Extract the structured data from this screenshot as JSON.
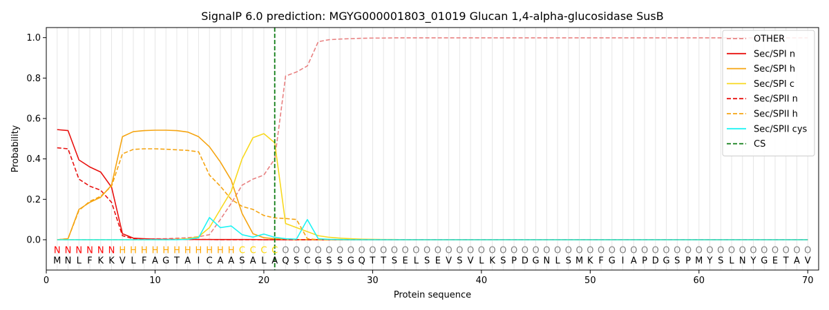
{
  "chart_data": {
    "type": "line",
    "title": "SignalP 6.0 prediction: MGYG000001803_01019 Glucan 1,4-alpha-glucosidase SusB",
    "xlabel": "Protein sequence",
    "ylabel": "Probability",
    "xlim": [
      0,
      71
    ],
    "ylim": [
      -0.15,
      1.05
    ],
    "xticks": [
      0,
      10,
      20,
      30,
      40,
      50,
      60,
      70
    ],
    "yticks": [
      0.0,
      0.2,
      0.4,
      0.6,
      0.8,
      1.0
    ],
    "ytick_labels": [
      "0.0",
      "0.2",
      "0.4",
      "0.6",
      "0.8",
      "1.0"
    ],
    "grid": "vertical lines at every residue",
    "legend_position": "top-right",
    "cleavage_site": 21,
    "sequence": [
      "M",
      "N",
      "L",
      "F",
      "K",
      "K",
      "V",
      "L",
      "F",
      "A",
      "G",
      "T",
      "A",
      "I",
      "C",
      "A",
      "A",
      "S",
      "A",
      "L",
      "A",
      "Q",
      "S",
      "C",
      "G",
      "S",
      "S",
      "G",
      "Q",
      "T",
      "T",
      "S",
      "E",
      "L",
      "S",
      "E",
      "V",
      "S",
      "V",
      "L",
      "K",
      "S",
      "P",
      "D",
      "G",
      "N",
      "L",
      "S",
      "M",
      "K",
      "F",
      "G",
      "I",
      "A",
      "P",
      "D",
      "G",
      "S",
      "P",
      "M",
      "Y",
      "S",
      "L",
      "N",
      "Y",
      "G",
      "E",
      "T",
      "A",
      "V"
    ],
    "region_labels": [
      "N",
      "N",
      "N",
      "N",
      "N",
      "N",
      "H",
      "H",
      "H",
      "H",
      "H",
      "H",
      "H",
      "H",
      "H",
      "H",
      "H",
      "C",
      "C",
      "C",
      "C",
      "O",
      "O",
      "O",
      "O",
      "O",
      "O",
      "O",
      "O",
      "O",
      "O",
      "O",
      "O",
      "O",
      "O",
      "O",
      "O",
      "O",
      "O",
      "O",
      "O",
      "O",
      "O",
      "O",
      "O",
      "O",
      "O",
      "O",
      "O",
      "O",
      "O",
      "O",
      "O",
      "O",
      "O",
      "O",
      "O",
      "O",
      "O",
      "O",
      "O",
      "O",
      "O",
      "O",
      "O",
      "O",
      "O",
      "O",
      "O",
      "O"
    ],
    "region_colors": {
      "N": "#ff0000",
      "H": "#ffa500",
      "C": "#ffd700",
      "O": "#808080"
    },
    "series": [
      {
        "name": "OTHER",
        "color": "#e88080",
        "dash": "dashed",
        "values": [
          0.0,
          0.0,
          0.0,
          0.0,
          0.0,
          0.0,
          0.0,
          0.0,
          0.0,
          0.005,
          0.005,
          0.008,
          0.01,
          0.015,
          0.025,
          0.1,
          0.18,
          0.27,
          0.3,
          0.32,
          0.4,
          0.81,
          0.83,
          0.86,
          0.98,
          0.99,
          0.993,
          0.995,
          0.997,
          0.998,
          0.998,
          0.999,
          0.999,
          0.999,
          0.999,
          0.999,
          0.999,
          0.999,
          0.999,
          0.999,
          0.999,
          0.999,
          0.999,
          0.999,
          0.999,
          0.999,
          0.999,
          0.999,
          0.999,
          0.999,
          0.999,
          0.999,
          0.999,
          0.999,
          0.999,
          0.999,
          0.999,
          0.999,
          0.999,
          0.999,
          0.999,
          0.999,
          0.999,
          0.999,
          0.999,
          0.999,
          0.999,
          0.999,
          0.999,
          0.999
        ]
      },
      {
        "name": "Sec/SPI n",
        "color": "#e8100e",
        "dash": "solid",
        "values": [
          0.545,
          0.54,
          0.395,
          0.36,
          0.335,
          0.26,
          0.03,
          0.008,
          0.005,
          0.003,
          0.002,
          0.002,
          0.002,
          0.001,
          0.001,
          0.001,
          0.001,
          0.001,
          0.001,
          0.0,
          0.0,
          0.0,
          0.0,
          0.0,
          0.0,
          0.0,
          0.0,
          0.0,
          0.0,
          0.0,
          0.0,
          0.0,
          0.0,
          0.0,
          0.0,
          0.0,
          0.0,
          0.0,
          0.0,
          0.0,
          0.0,
          0.0,
          0.0,
          0.0,
          0.0,
          0.0,
          0.0,
          0.0,
          0.0,
          0.0,
          0.0,
          0.0,
          0.0,
          0.0,
          0.0,
          0.0,
          0.0,
          0.0,
          0.0,
          0.0,
          0.0,
          0.0,
          0.0,
          0.0,
          0.0,
          0.0,
          0.0,
          0.0,
          0.0,
          0.0
        ]
      },
      {
        "name": "Sec/SPI h",
        "color": "#f5a410",
        "dash": "solid",
        "values": [
          0.0,
          0.005,
          0.15,
          0.185,
          0.21,
          0.27,
          0.51,
          0.535,
          0.54,
          0.542,
          0.542,
          0.54,
          0.533,
          0.51,
          0.46,
          0.385,
          0.295,
          0.13,
          0.03,
          0.01,
          0.005,
          0.002,
          0.0,
          0.0,
          0.0,
          0.0,
          0.0,
          0.0,
          0.0,
          0.0,
          0.0,
          0.0,
          0.0,
          0.0,
          0.0,
          0.0,
          0.0,
          0.0,
          0.0,
          0.0,
          0.0,
          0.0,
          0.0,
          0.0,
          0.0,
          0.0,
          0.0,
          0.0,
          0.0,
          0.0,
          0.0,
          0.0,
          0.0,
          0.0,
          0.0,
          0.0,
          0.0,
          0.0,
          0.0,
          0.0,
          0.0,
          0.0,
          0.0,
          0.0,
          0.0,
          0.0,
          0.0,
          0.0,
          0.0,
          0.0
        ]
      },
      {
        "name": "Sec/SPI c",
        "color": "#f8d81e",
        "dash": "solid",
        "values": [
          0.0,
          0.0,
          0.0,
          0.0,
          0.0,
          0.0,
          0.0,
          0.0,
          0.0,
          0.0,
          0.0,
          0.002,
          0.005,
          0.015,
          0.06,
          0.15,
          0.24,
          0.4,
          0.505,
          0.525,
          0.48,
          0.08,
          0.06,
          0.04,
          0.02,
          0.012,
          0.008,
          0.005,
          0.003,
          0.002,
          0.001,
          0.001,
          0.0,
          0.0,
          0.0,
          0.0,
          0.0,
          0.0,
          0.0,
          0.0,
          0.0,
          0.0,
          0.0,
          0.0,
          0.0,
          0.0,
          0.0,
          0.0,
          0.0,
          0.0,
          0.0,
          0.0,
          0.0,
          0.0,
          0.0,
          0.0,
          0.0,
          0.0,
          0.0,
          0.0,
          0.0,
          0.0,
          0.0,
          0.0,
          0.0,
          0.0,
          0.0,
          0.0,
          0.0,
          0.0
        ]
      },
      {
        "name": "Sec/SPII n",
        "color": "#e8100e",
        "dash": "dashed",
        "values": [
          0.455,
          0.45,
          0.3,
          0.265,
          0.245,
          0.185,
          0.02,
          0.005,
          0.003,
          0.002,
          0.001,
          0.001,
          0.001,
          0.001,
          0.001,
          0.0,
          0.0,
          0.0,
          0.0,
          0.0,
          0.0,
          0.0,
          0.0,
          0.0,
          0.0,
          0.0,
          0.0,
          0.0,
          0.0,
          0.0,
          0.0,
          0.0,
          0.0,
          0.0,
          0.0,
          0.0,
          0.0,
          0.0,
          0.0,
          0.0,
          0.0,
          0.0,
          0.0,
          0.0,
          0.0,
          0.0,
          0.0,
          0.0,
          0.0,
          0.0,
          0.0,
          0.0,
          0.0,
          0.0,
          0.0,
          0.0,
          0.0,
          0.0,
          0.0,
          0.0,
          0.0,
          0.0,
          0.0,
          0.0,
          0.0,
          0.0,
          0.0,
          0.0,
          0.0,
          0.0
        ]
      },
      {
        "name": "Sec/SPII h",
        "color": "#f5a410",
        "dash": "dashed",
        "values": [
          0.0,
          0.005,
          0.145,
          0.19,
          0.215,
          0.265,
          0.425,
          0.447,
          0.45,
          0.45,
          0.448,
          0.445,
          0.442,
          0.435,
          0.32,
          0.265,
          0.2,
          0.165,
          0.15,
          0.12,
          0.108,
          0.105,
          0.1,
          0.005,
          0.0,
          0.0,
          0.0,
          0.0,
          0.0,
          0.0,
          0.0,
          0.0,
          0.0,
          0.0,
          0.0,
          0.0,
          0.0,
          0.0,
          0.0,
          0.0,
          0.0,
          0.0,
          0.0,
          0.0,
          0.0,
          0.0,
          0.0,
          0.0,
          0.0,
          0.0,
          0.0,
          0.0,
          0.0,
          0.0,
          0.0,
          0.0,
          0.0,
          0.0,
          0.0,
          0.0,
          0.0,
          0.0,
          0.0,
          0.0,
          0.0,
          0.0,
          0.0,
          0.0,
          0.0,
          0.0
        ]
      },
      {
        "name": "Sec/SPII cys",
        "color": "#1ef4f4",
        "dash": "solid",
        "values": [
          0.0,
          0.0,
          0.0,
          0.0,
          0.0,
          0.0,
          0.0,
          0.0,
          0.0,
          0.0,
          0.0,
          0.0,
          0.002,
          0.01,
          0.11,
          0.06,
          0.068,
          0.025,
          0.013,
          0.028,
          0.012,
          0.005,
          0.003,
          0.1,
          0.005,
          0.002,
          0.001,
          0.0,
          0.0,
          0.0,
          0.0,
          0.0,
          0.0,
          0.0,
          0.0,
          0.0,
          0.0,
          0.0,
          0.0,
          0.0,
          0.0,
          0.0,
          0.0,
          0.0,
          0.0,
          0.0,
          0.0,
          0.0,
          0.0,
          0.0,
          0.0,
          0.0,
          0.0,
          0.0,
          0.0,
          0.0,
          0.0,
          0.0,
          0.0,
          0.0,
          0.0,
          0.0,
          0.0,
          0.0,
          0.0,
          0.0,
          0.0,
          0.0,
          0.0,
          0.0
        ]
      }
    ],
    "cs_series": {
      "name": "CS",
      "color": "#0a7a10",
      "dash": "dashed"
    }
  }
}
